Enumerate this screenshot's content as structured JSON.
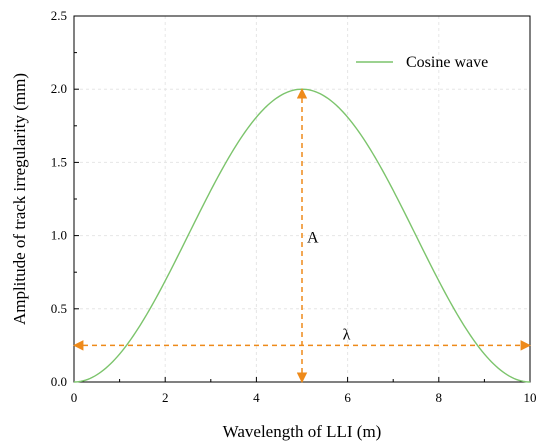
{
  "chart_data": {
    "type": "line",
    "xlabel": "Wavelength of LLI (m)",
    "ylabel": "Amplitude of track irregularity (mm)",
    "xlim": [
      0,
      10
    ],
    "ylim": [
      0,
      2.5
    ],
    "x_ticks": [
      "0",
      "2",
      "4",
      "6",
      "8",
      "10"
    ],
    "y_ticks": [
      "0.0",
      "0.5",
      "1.0",
      "1.5",
      "2.0",
      "2.5"
    ],
    "grid": true,
    "legend": "top-right",
    "series": [
      {
        "name": "Cosine wave",
        "color": "#7cc46c",
        "function": "y = 1 - cos(2*pi*x/10)",
        "x": [
          0,
          0.5,
          1,
          1.5,
          2,
          2.5,
          3,
          3.5,
          4,
          4.5,
          5,
          5.5,
          6,
          6.5,
          7,
          7.5,
          8,
          8.5,
          9,
          9.5,
          10
        ],
        "y": [
          0,
          0.049,
          0.191,
          0.412,
          0.691,
          1.0,
          1.309,
          1.588,
          1.809,
          1.951,
          2.0,
          1.951,
          1.809,
          1.588,
          1.309,
          1.0,
          0.691,
          0.412,
          0.191,
          0.049,
          0
        ]
      }
    ],
    "annotations": [
      {
        "text": "A",
        "type": "vertical-arrow",
        "x": 5,
        "y_from": 0,
        "y_to": 2.0,
        "label_y": 1.0,
        "color": "#ee8a1a"
      },
      {
        "text": "λ",
        "type": "horizontal-arrow",
        "y": 0.25,
        "x_from": 0,
        "x_to": 10,
        "label_x": 6.0,
        "color": "#ee8a1a"
      }
    ]
  }
}
